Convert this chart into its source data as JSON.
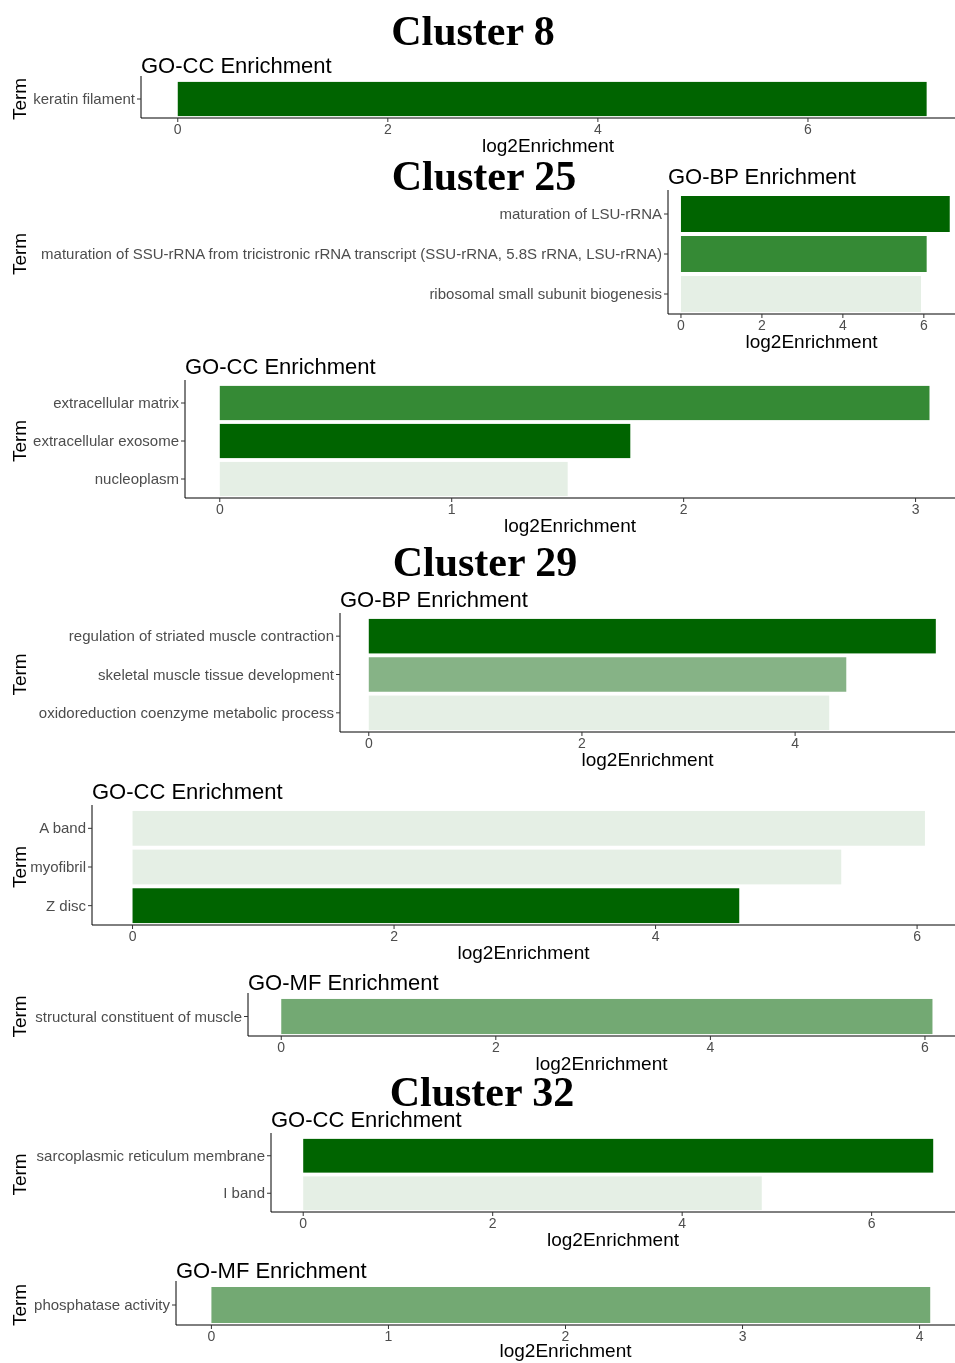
{
  "chart_data": [
    {
      "type": "bar",
      "orientation": "horizontal",
      "title": "Cluster 8",
      "subtitle": "GO-CC Enrichment",
      "xlabel": "log2Enrichment",
      "ylabel": "Term",
      "categories": [
        "keratin filament"
      ],
      "values": [
        7.13
      ],
      "colors": [
        "#006400"
      ],
      "xlim": [
        -0.35,
        7.4
      ],
      "xticks": [
        0,
        2,
        4,
        6
      ]
    },
    {
      "type": "bar",
      "orientation": "horizontal",
      "annotations": [
        "Cluster 25"
      ],
      "subtitle": "GO-BP Enrichment",
      "xlabel": "log2Enrichment",
      "ylabel": "Term",
      "categories": [
        "maturation of LSU-rRNA",
        "maturation of SSU-rRNA from tricistronic rRNA transcript (SSU-rRNA, 5.8S rRNA, LSU-rRNA)",
        "ribosomal small subunit biogenesis"
      ],
      "values": [
        6.64,
        6.07,
        5.93
      ],
      "colors": [
        "#006400",
        "#358a35",
        "#e5efe5"
      ],
      "xlim": [
        -0.32,
        6.77
      ],
      "xticks": [
        0,
        2,
        4,
        6
      ]
    },
    {
      "type": "bar",
      "orientation": "horizontal",
      "subtitle": "GO-CC Enrichment",
      "xlabel": "log2Enrichment",
      "ylabel": "Term",
      "categories": [
        "extracellular matrix",
        "extracellular exosome",
        "nucleoplasm"
      ],
      "values": [
        3.06,
        1.77,
        1.5
      ],
      "colors": [
        "#358a35",
        "#006400",
        "#e5efe5"
      ],
      "xlim": [
        -0.15,
        3.17
      ],
      "xticks": [
        0,
        1,
        2,
        3
      ]
    },
    {
      "type": "bar",
      "orientation": "horizontal",
      "title": "Cluster 29",
      "subtitle": "GO-BP Enrichment",
      "xlabel": "log2Enrichment",
      "ylabel": "Term",
      "categories": [
        "regulation of striated muscle contraction",
        "skeletal muscle tissue development",
        "oxidoreduction coenzyme metabolic process"
      ],
      "values": [
        5.32,
        4.48,
        4.32
      ],
      "colors": [
        "#006400",
        "#86b386",
        "#e5efe5"
      ],
      "xlim": [
        -0.27,
        5.5
      ],
      "xticks": [
        0,
        2,
        4
      ]
    },
    {
      "type": "bar",
      "orientation": "horizontal",
      "subtitle": "GO-CC Enrichment",
      "xlabel": "log2Enrichment",
      "ylabel": "Term",
      "categories": [
        "A band",
        "myofibril",
        "Z disc"
      ],
      "values": [
        6.06,
        5.42,
        4.64
      ],
      "colors": [
        "#e5efe5",
        "#e5efe5",
        "#006400"
      ],
      "xlim": [
        -0.31,
        6.29
      ],
      "xticks": [
        0,
        2,
        4,
        6
      ]
    },
    {
      "type": "bar",
      "orientation": "horizontal",
      "subtitle": "GO-MF Enrichment",
      "xlabel": "log2Enrichment",
      "ylabel": "Term",
      "categories": [
        "structural constituent of muscle"
      ],
      "values": [
        6.07
      ],
      "colors": [
        "#73a973"
      ],
      "xlim": [
        -0.31,
        6.28
      ],
      "xticks": [
        0,
        2,
        4,
        6
      ]
    },
    {
      "type": "bar",
      "orientation": "horizontal",
      "title": "Cluster 32",
      "subtitle": "GO-CC Enrichment",
      "xlabel": "log2Enrichment",
      "ylabel": "Term",
      "categories": [
        "sarcoplasmic reticulum membrane",
        "I band"
      ],
      "values": [
        6.65,
        4.84
      ],
      "colors": [
        "#006400",
        "#e5efe5"
      ],
      "xlim": [
        -0.34,
        6.88
      ],
      "xticks": [
        0,
        2,
        4,
        6
      ]
    },
    {
      "type": "bar",
      "orientation": "horizontal",
      "subtitle": "GO-MF Enrichment",
      "xlabel": "log2Enrichment",
      "ylabel": "Term",
      "categories": [
        "phosphatase activity"
      ],
      "values": [
        4.06
      ],
      "colors": [
        "#73a973"
      ],
      "xlim": [
        -0.2,
        4.2
      ],
      "xticks": [
        0,
        1,
        2,
        3,
        4
      ]
    }
  ]
}
